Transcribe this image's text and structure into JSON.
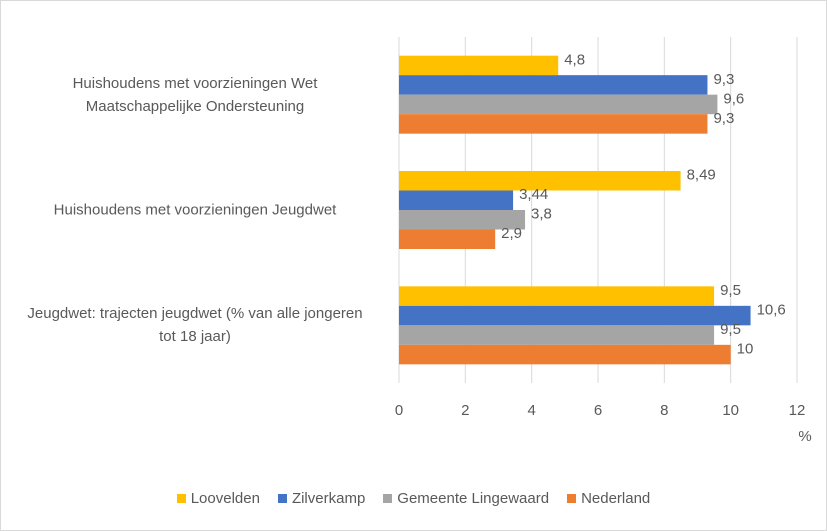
{
  "chart_data": {
    "type": "bar",
    "orientation": "horizontal",
    "categories": [
      "Huishoudens met voorzieningen Wet Maatschappelijke Ondersteuning",
      "Huishoudens met voorzieningen Jeugdwet",
      "Jeugdwet: trajecten jeugdwet (% van alle jongeren tot 18 jaar)"
    ],
    "series": [
      {
        "name": "Loovelden",
        "color": "#ffc000",
        "values": [
          4.8,
          8.49,
          9.5
        ],
        "value_labels": [
          "4,8",
          "8,49",
          "9,5"
        ]
      },
      {
        "name": "Zilverkamp",
        "color": "#4472c4",
        "values": [
          9.3,
          3.44,
          10.6
        ],
        "value_labels": [
          "9,3",
          "3,44",
          "10,6"
        ]
      },
      {
        "name": "Gemeente Lingewaard",
        "color": "#a5a5a5",
        "values": [
          9.6,
          3.8,
          9.5
        ],
        "value_labels": [
          "9,6",
          "3,8",
          "9,5"
        ]
      },
      {
        "name": "Nederland",
        "color": "#ed7d31",
        "values": [
          9.3,
          2.9,
          10
        ],
        "value_labels": [
          "9,3",
          "2,9",
          "10"
        ]
      }
    ],
    "x_label": "%",
    "xlim": [
      0,
      12
    ],
    "xticks": [
      0,
      2,
      4,
      6,
      8,
      10,
      12
    ],
    "grid": true,
    "legend": "bottom"
  }
}
